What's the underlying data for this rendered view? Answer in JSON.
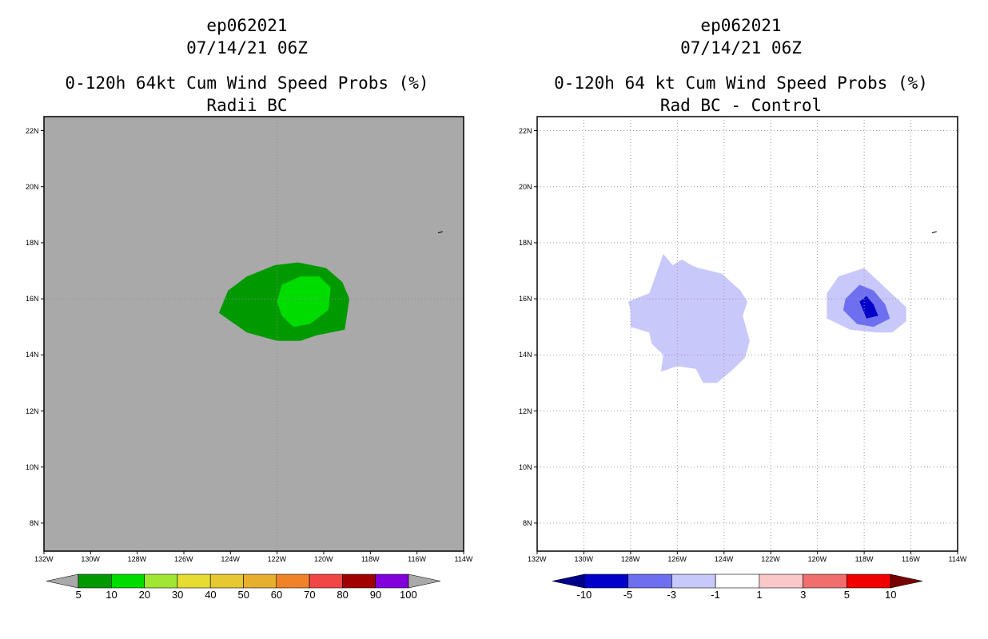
{
  "left_panel": {
    "title_line1": "ep062021",
    "title_line2": "07/14/21 06Z",
    "title_line3": "0-120h 64kt Cum Wind Speed Probs (%)",
    "title_line4": "Radii BC",
    "background_color": "#a9a9a9"
  },
  "right_panel": {
    "title_line1": "ep062021",
    "title_line2": "07/14/21 06Z",
    "title_line3": "0-120h 64 kt Cum Wind Speed Probs (%)",
    "title_line4": "Rad BC - Control",
    "background_color": "#ffffff"
  },
  "axes": {
    "lon_labels": [
      "132W",
      "130W",
      "128W",
      "126W",
      "124W",
      "122W",
      "120W",
      "118W",
      "116W",
      "114W"
    ],
    "lat_labels": [
      "22N",
      "20N",
      "18N",
      "16N",
      "14N",
      "12N",
      "10N",
      "8N"
    ]
  },
  "left_colorbar": {
    "colors": [
      "#009a00",
      "#00dc00",
      "#a0e632",
      "#e6dc32",
      "#e6c832",
      "#e6af2d",
      "#f08228",
      "#f04646",
      "#a00000",
      "#8200dc"
    ],
    "labels": [
      "5",
      "10",
      "20",
      "30",
      "40",
      "50",
      "60",
      "70",
      "80",
      "90",
      "100"
    ],
    "end_color": "#a9a9a9"
  },
  "right_colorbar": {
    "colors": [
      "#0000c8",
      "#6e6ef0",
      "#c8c8fa",
      "#ffffff",
      "#fac8c8",
      "#f06e6e",
      "#f00000"
    ],
    "labels": [
      "-10",
      "-5",
      "-3",
      "-1",
      "1",
      "3",
      "5",
      "10"
    ],
    "low_end_color": "#00008c",
    "high_end_color": "#780000"
  },
  "chart_data": [
    {
      "type": "contour-map",
      "title": "0-120h 64kt Cum Wind Speed Probs (%) Radii BC",
      "xlim": [
        -132,
        -114
      ],
      "ylim": [
        7,
        22.5
      ],
      "contours": [
        {
          "level": "5-10",
          "color": "#009a00",
          "points": [
            [
              -124.5,
              15.5
            ],
            [
              -124.1,
              16.3
            ],
            [
              -123.3,
              16.8
            ],
            [
              -122.1,
              17.2
            ],
            [
              -121.1,
              17.3
            ],
            [
              -119.9,
              17.1
            ],
            [
              -119.2,
              16.6
            ],
            [
              -118.9,
              16.0
            ],
            [
              -119.1,
              14.9
            ],
            [
              -120.3,
              14.7
            ],
            [
              -121.0,
              14.5
            ],
            [
              -122.0,
              14.5
            ],
            [
              -123.3,
              14.8
            ]
          ]
        },
        {
          "level": "10-20",
          "color": "#00dc00",
          "points": [
            [
              -122.0,
              15.9
            ],
            [
              -121.8,
              16.5
            ],
            [
              -121.0,
              16.8
            ],
            [
              -120.2,
              16.8
            ],
            [
              -119.7,
              16.4
            ],
            [
              -119.8,
              15.6
            ],
            [
              -120.6,
              15.1
            ],
            [
              -121.3,
              15.0
            ],
            [
              -121.8,
              15.4
            ]
          ]
        }
      ]
    },
    {
      "type": "contour-map",
      "title": "0-120h 64 kt Cum Wind Speed Probs (%) Rad BC - Control",
      "xlim": [
        -132,
        -114
      ],
      "ylim": [
        7,
        22.5
      ],
      "contours": [
        {
          "level": "-3 to -1",
          "color": "#c8c8fa",
          "points": [
            [
              -128.1,
              15.9
            ],
            [
              -127.2,
              16.2
            ],
            [
              -126.6,
              17.6
            ],
            [
              -126.2,
              17.2
            ],
            [
              -125.8,
              17.4
            ],
            [
              -125.4,
              17.2
            ],
            [
              -125.1,
              17.1
            ],
            [
              -124.1,
              16.9
            ],
            [
              -123.3,
              16.3
            ],
            [
              -123.0,
              15.9
            ],
            [
              -123.2,
              15.4
            ],
            [
              -122.9,
              14.5
            ],
            [
              -123.1,
              13.9
            ],
            [
              -123.6,
              13.5
            ],
            [
              -124.3,
              13.0
            ],
            [
              -124.9,
              13.0
            ],
            [
              -125.2,
              13.5
            ],
            [
              -126.0,
              13.6
            ],
            [
              -126.7,
              13.4
            ],
            [
              -126.6,
              14.0
            ],
            [
              -127.1,
              14.4
            ],
            [
              -127.2,
              14.8
            ],
            [
              -128.0,
              15.0
            ],
            [
              -128.0,
              15.6
            ]
          ]
        },
        {
          "level": "-3 to -1",
          "color": "#c8c8fa",
          "points": [
            [
              -119.6,
              16.2
            ],
            [
              -119.1,
              16.8
            ],
            [
              -118.0,
              17.1
            ],
            [
              -117.1,
              16.4
            ],
            [
              -116.2,
              15.7
            ],
            [
              -116.2,
              15.2
            ],
            [
              -116.8,
              14.8
            ],
            [
              -117.5,
              14.8
            ],
            [
              -118.6,
              14.9
            ],
            [
              -119.6,
              15.3
            ]
          ]
        },
        {
          "level": "-5 to -3",
          "color": "#6e6ef0",
          "points": [
            [
              -118.8,
              16.0
            ],
            [
              -118.2,
              16.5
            ],
            [
              -117.6,
              16.3
            ],
            [
              -117.1,
              15.8
            ],
            [
              -116.9,
              15.3
            ],
            [
              -117.6,
              15.0
            ],
            [
              -118.3,
              15.1
            ],
            [
              -118.9,
              15.6
            ]
          ]
        },
        {
          "level": "-10 to -5",
          "color": "#0000c8",
          "points": [
            [
              -118.2,
              15.9
            ],
            [
              -117.9,
              16.1
            ],
            [
              -117.6,
              15.8
            ],
            [
              -117.4,
              15.4
            ],
            [
              -117.9,
              15.3
            ]
          ]
        }
      ]
    }
  ]
}
